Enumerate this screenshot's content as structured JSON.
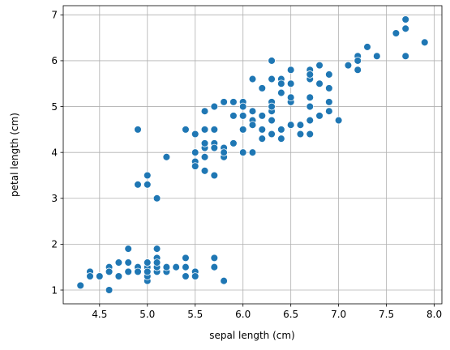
{
  "chart_data": {
    "type": "scatter",
    "title": "",
    "xlabel": "sepal length (cm)",
    "ylabel": "petal length (cm)",
    "xlim": [
      4.12,
      8.08
    ],
    "ylim": [
      0.7,
      7.2
    ],
    "xticks": [
      4.5,
      5.0,
      5.5,
      6.0,
      6.5,
      7.0,
      7.5,
      8.0
    ],
    "xtick_labels": [
      "4.5",
      "5.0",
      "5.5",
      "6.0",
      "6.5",
      "7.0",
      "7.5",
      "8.0"
    ],
    "yticks": [
      1,
      2,
      3,
      4,
      5,
      6,
      7
    ],
    "ytick_labels": [
      "1",
      "2",
      "3",
      "4",
      "5",
      "6",
      "7"
    ],
    "grid": true,
    "legend": "none",
    "marker_color": "#1f77b4",
    "marker_edge_color": "#ffffff",
    "points": [
      [
        5.1,
        1.4
      ],
      [
        4.9,
        1.4
      ],
      [
        4.7,
        1.3
      ],
      [
        4.6,
        1.5
      ],
      [
        5.0,
        1.4
      ],
      [
        5.4,
        1.7
      ],
      [
        4.6,
        1.4
      ],
      [
        5.0,
        1.5
      ],
      [
        4.4,
        1.4
      ],
      [
        4.9,
        1.5
      ],
      [
        5.4,
        1.5
      ],
      [
        4.8,
        1.6
      ],
      [
        4.8,
        1.4
      ],
      [
        4.3,
        1.1
      ],
      [
        5.8,
        1.2
      ],
      [
        5.7,
        1.5
      ],
      [
        5.4,
        1.3
      ],
      [
        5.1,
        1.4
      ],
      [
        5.7,
        1.7
      ],
      [
        5.1,
        1.5
      ],
      [
        5.4,
        1.7
      ],
      [
        5.1,
        1.5
      ],
      [
        4.6,
        1.0
      ],
      [
        5.1,
        1.7
      ],
      [
        4.8,
        1.9
      ],
      [
        5.0,
        1.6
      ],
      [
        5.0,
        1.6
      ],
      [
        5.2,
        1.5
      ],
      [
        5.2,
        1.4
      ],
      [
        4.7,
        1.6
      ],
      [
        4.8,
        1.6
      ],
      [
        5.4,
        1.5
      ],
      [
        5.2,
        1.5
      ],
      [
        5.5,
        1.4
      ],
      [
        4.9,
        1.5
      ],
      [
        5.0,
        1.2
      ],
      [
        5.5,
        1.3
      ],
      [
        4.9,
        1.4
      ],
      [
        4.4,
        1.3
      ],
      [
        5.1,
        1.5
      ],
      [
        5.0,
        1.3
      ],
      [
        4.5,
        1.3
      ],
      [
        4.4,
        1.3
      ],
      [
        5.0,
        1.6
      ],
      [
        5.1,
        1.9
      ],
      [
        4.8,
        1.4
      ],
      [
        5.1,
        1.6
      ],
      [
        4.6,
        1.4
      ],
      [
        5.3,
        1.5
      ],
      [
        5.0,
        1.4
      ],
      [
        7.0,
        4.7
      ],
      [
        6.4,
        4.5
      ],
      [
        6.9,
        4.9
      ],
      [
        5.5,
        4.0
      ],
      [
        6.5,
        4.6
      ],
      [
        5.7,
        4.5
      ],
      [
        6.3,
        4.7
      ],
      [
        4.9,
        3.3
      ],
      [
        6.6,
        4.6
      ],
      [
        5.2,
        3.9
      ],
      [
        5.0,
        3.5
      ],
      [
        5.9,
        4.2
      ],
      [
        6.0,
        4.0
      ],
      [
        6.1,
        4.7
      ],
      [
        5.6,
        3.6
      ],
      [
        6.7,
        4.4
      ],
      [
        5.6,
        4.5
      ],
      [
        5.8,
        4.1
      ],
      [
        6.2,
        4.5
      ],
      [
        5.6,
        3.9
      ],
      [
        5.9,
        4.8
      ],
      [
        6.1,
        4.0
      ],
      [
        6.3,
        4.9
      ],
      [
        6.1,
        4.7
      ],
      [
        6.4,
        4.3
      ],
      [
        6.6,
        4.4
      ],
      [
        6.8,
        4.8
      ],
      [
        6.7,
        5.0
      ],
      [
        6.0,
        4.5
      ],
      [
        5.7,
        3.5
      ],
      [
        5.5,
        3.8
      ],
      [
        5.5,
        3.7
      ],
      [
        5.8,
        3.9
      ],
      [
        6.0,
        5.1
      ],
      [
        5.4,
        4.5
      ],
      [
        6.0,
        4.5
      ],
      [
        6.7,
        4.7
      ],
      [
        6.3,
        4.4
      ],
      [
        5.6,
        4.1
      ],
      [
        5.5,
        4.0
      ],
      [
        5.5,
        4.4
      ],
      [
        6.1,
        4.6
      ],
      [
        5.8,
        4.0
      ],
      [
        5.0,
        3.3
      ],
      [
        5.6,
        4.2
      ],
      [
        5.7,
        4.2
      ],
      [
        5.7,
        4.2
      ],
      [
        6.2,
        4.3
      ],
      [
        5.1,
        3.0
      ],
      [
        5.7,
        4.1
      ],
      [
        6.3,
        6.0
      ],
      [
        5.8,
        5.1
      ],
      [
        7.1,
        5.9
      ],
      [
        6.3,
        5.6
      ],
      [
        6.5,
        5.8
      ],
      [
        7.6,
        6.6
      ],
      [
        4.9,
        4.5
      ],
      [
        7.3,
        6.3
      ],
      [
        6.7,
        5.8
      ],
      [
        7.2,
        6.1
      ],
      [
        6.5,
        5.1
      ],
      [
        6.4,
        5.3
      ],
      [
        6.8,
        5.5
      ],
      [
        5.7,
        5.0
      ],
      [
        5.8,
        5.1
      ],
      [
        6.4,
        5.3
      ],
      [
        6.5,
        5.5
      ],
      [
        7.7,
        6.7
      ],
      [
        7.7,
        6.9
      ],
      [
        6.0,
        5.0
      ],
      [
        6.9,
        5.7
      ],
      [
        5.6,
        4.9
      ],
      [
        7.7,
        6.7
      ],
      [
        6.3,
        4.9
      ],
      [
        6.7,
        5.7
      ],
      [
        7.2,
        6.0
      ],
      [
        6.2,
        4.8
      ],
      [
        6.1,
        4.9
      ],
      [
        6.4,
        5.6
      ],
      [
        7.2,
        5.8
      ],
      [
        7.4,
        6.1
      ],
      [
        7.9,
        6.4
      ],
      [
        6.4,
        5.6
      ],
      [
        6.3,
        5.1
      ],
      [
        6.1,
        5.6
      ],
      [
        7.7,
        6.1
      ],
      [
        6.3,
        5.6
      ],
      [
        6.4,
        5.5
      ],
      [
        6.0,
        4.8
      ],
      [
        6.9,
        5.4
      ],
      [
        6.7,
        5.6
      ],
      [
        6.9,
        5.1
      ],
      [
        5.8,
        5.1
      ],
      [
        6.8,
        5.9
      ],
      [
        6.7,
        5.7
      ],
      [
        6.7,
        5.2
      ],
      [
        6.3,
        5.0
      ],
      [
        6.5,
        5.2
      ],
      [
        6.2,
        5.4
      ],
      [
        5.9,
        5.1
      ]
    ]
  }
}
